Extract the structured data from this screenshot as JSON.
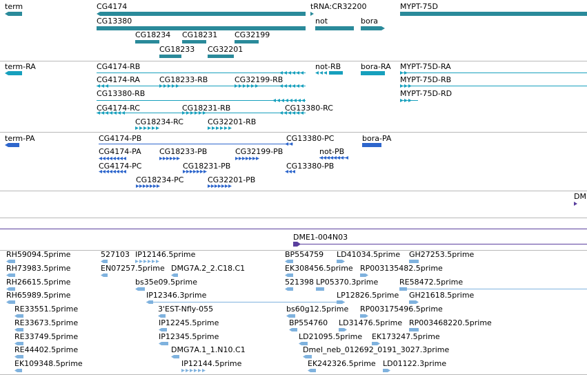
{
  "colors": {
    "gene": "#2a8a9a",
    "mrna": "#17a0bd",
    "protein": "#2e66cc",
    "clone": "#5a3f9e",
    "est": "#7fb2de",
    "separator": "#b8b8b8"
  },
  "tracks": {
    "gene": [
      {
        "id": "gene-term",
        "label": "term",
        "strand": "-"
      },
      {
        "id": "gene-CG4174",
        "label": "CG4174",
        "strand": "-"
      },
      {
        "id": "gene-CG13380",
        "label": "CG13380",
        "strand": "-"
      },
      {
        "id": "gene-CG18234",
        "label": "CG18234",
        "strand": "+"
      },
      {
        "id": "gene-CG18231",
        "label": "CG18231",
        "strand": "+"
      },
      {
        "id": "gene-CG32199",
        "label": "CG32199",
        "strand": "+"
      },
      {
        "id": "gene-CG18233",
        "label": "CG18233",
        "strand": "+"
      },
      {
        "id": "gene-CG32201",
        "label": "CG32201",
        "strand": "+"
      },
      {
        "id": "gene-tRNA-CR32200",
        "label": "tRNA:CR32200",
        "strand": "+"
      },
      {
        "id": "gene-not",
        "label": "not",
        "strand": "-"
      },
      {
        "id": "gene-bora",
        "label": "bora",
        "strand": "+"
      },
      {
        "id": "gene-MYPT-75D",
        "label": "MYPT-75D",
        "strand": "+"
      }
    ],
    "mrna": [
      {
        "id": "term-RA",
        "label": "term-RA"
      },
      {
        "id": "CG4174-RB",
        "label": "CG4174-RB"
      },
      {
        "id": "not-RB",
        "label": "not-RB"
      },
      {
        "id": "bora-RA",
        "label": "bora-RA"
      },
      {
        "id": "MYPT-75D-RA",
        "label": "MYPT-75D-RA"
      },
      {
        "id": "CG4174-RA",
        "label": "CG4174-RA"
      },
      {
        "id": "CG18233-RB",
        "label": "CG18233-RB"
      },
      {
        "id": "CG32199-RB",
        "label": "CG32199-RB"
      },
      {
        "id": "MYPT-75D-RB",
        "label": "MYPT-75D-RB"
      },
      {
        "id": "CG13380-RB",
        "label": "CG13380-RB"
      },
      {
        "id": "MYPT-75D-RD",
        "label": "MYPT-75D-RD"
      },
      {
        "id": "CG4174-RC",
        "label": "CG4174-RC"
      },
      {
        "id": "CG18231-RB",
        "label": "CG18231-RB"
      },
      {
        "id": "CG13380-RC",
        "label": "CG13380-RC"
      },
      {
        "id": "CG18234-RC",
        "label": "CG18234-RC"
      },
      {
        "id": "CG32201-RB",
        "label": "CG32201-RB"
      }
    ],
    "protein": [
      {
        "id": "term-PA",
        "label": "term-PA"
      },
      {
        "id": "CG4174-PB",
        "label": "CG4174-PB"
      },
      {
        "id": "CG13380-PC",
        "label": "CG13380-PC"
      },
      {
        "id": "bora-PA",
        "label": "bora-PA"
      },
      {
        "id": "CG4174-PA",
        "label": "CG4174-PA"
      },
      {
        "id": "CG18233-PB",
        "label": "CG18233-PB"
      },
      {
        "id": "CG32199-PB",
        "label": "CG32199-PB"
      },
      {
        "id": "not-PB",
        "label": "not-PB"
      },
      {
        "id": "CG4174-PC",
        "label": "CG4174-PC"
      },
      {
        "id": "CG18231-PB",
        "label": "CG18231-PB"
      },
      {
        "id": "CG13380-PB",
        "label": "CG13380-PB"
      },
      {
        "id": "CG18234-PC",
        "label": "CG18234-PC"
      },
      {
        "id": "CG32201-PB",
        "label": "CG32201-PB"
      }
    ],
    "clone_edge": {
      "label": "DM"
    },
    "clone": {
      "label": "DME1-004N03"
    },
    "est": [
      "RH59094.5prime",
      "527103",
      "IP12146.5prime",
      "BP554759",
      "LD41034.5prime",
      "GH27253.5prime",
      "RH73983.5prime",
      "EN07257.5prime",
      "DMG7A.2_2.C18.C1",
      "EK308456.5prime",
      "RP003135482.5prime",
      "RH26615.5prime",
      "bs35e09.5prime",
      "521398",
      "LP05370.3prime",
      "RE58472.5prime",
      "RH65989.5prime",
      "IP12346.3prime",
      "LP12826.5prime",
      "GH21618.5prime",
      "RE33551.5prime",
      "3'EST-Nfly-055",
      "bs60g12.5prime",
      "RP003175496.5prime",
      "RE33673.5prime",
      "IP12245.5prime",
      "BP554760",
      "LD31476.5prime",
      "RP003468220.5prime",
      "RE33749.5prime",
      "IP12345.5prime",
      "LD21095.5prime",
      "EK173247.5prime",
      "RE44402.5prime",
      "DMG7A.1_1.N10.C1",
      "Dmel_neb_012692_0191_3027.3prime",
      "EK109348.5prime",
      "IP12144.5prime",
      "EK242326.5prime",
      "LD01122.3prime"
    ]
  }
}
